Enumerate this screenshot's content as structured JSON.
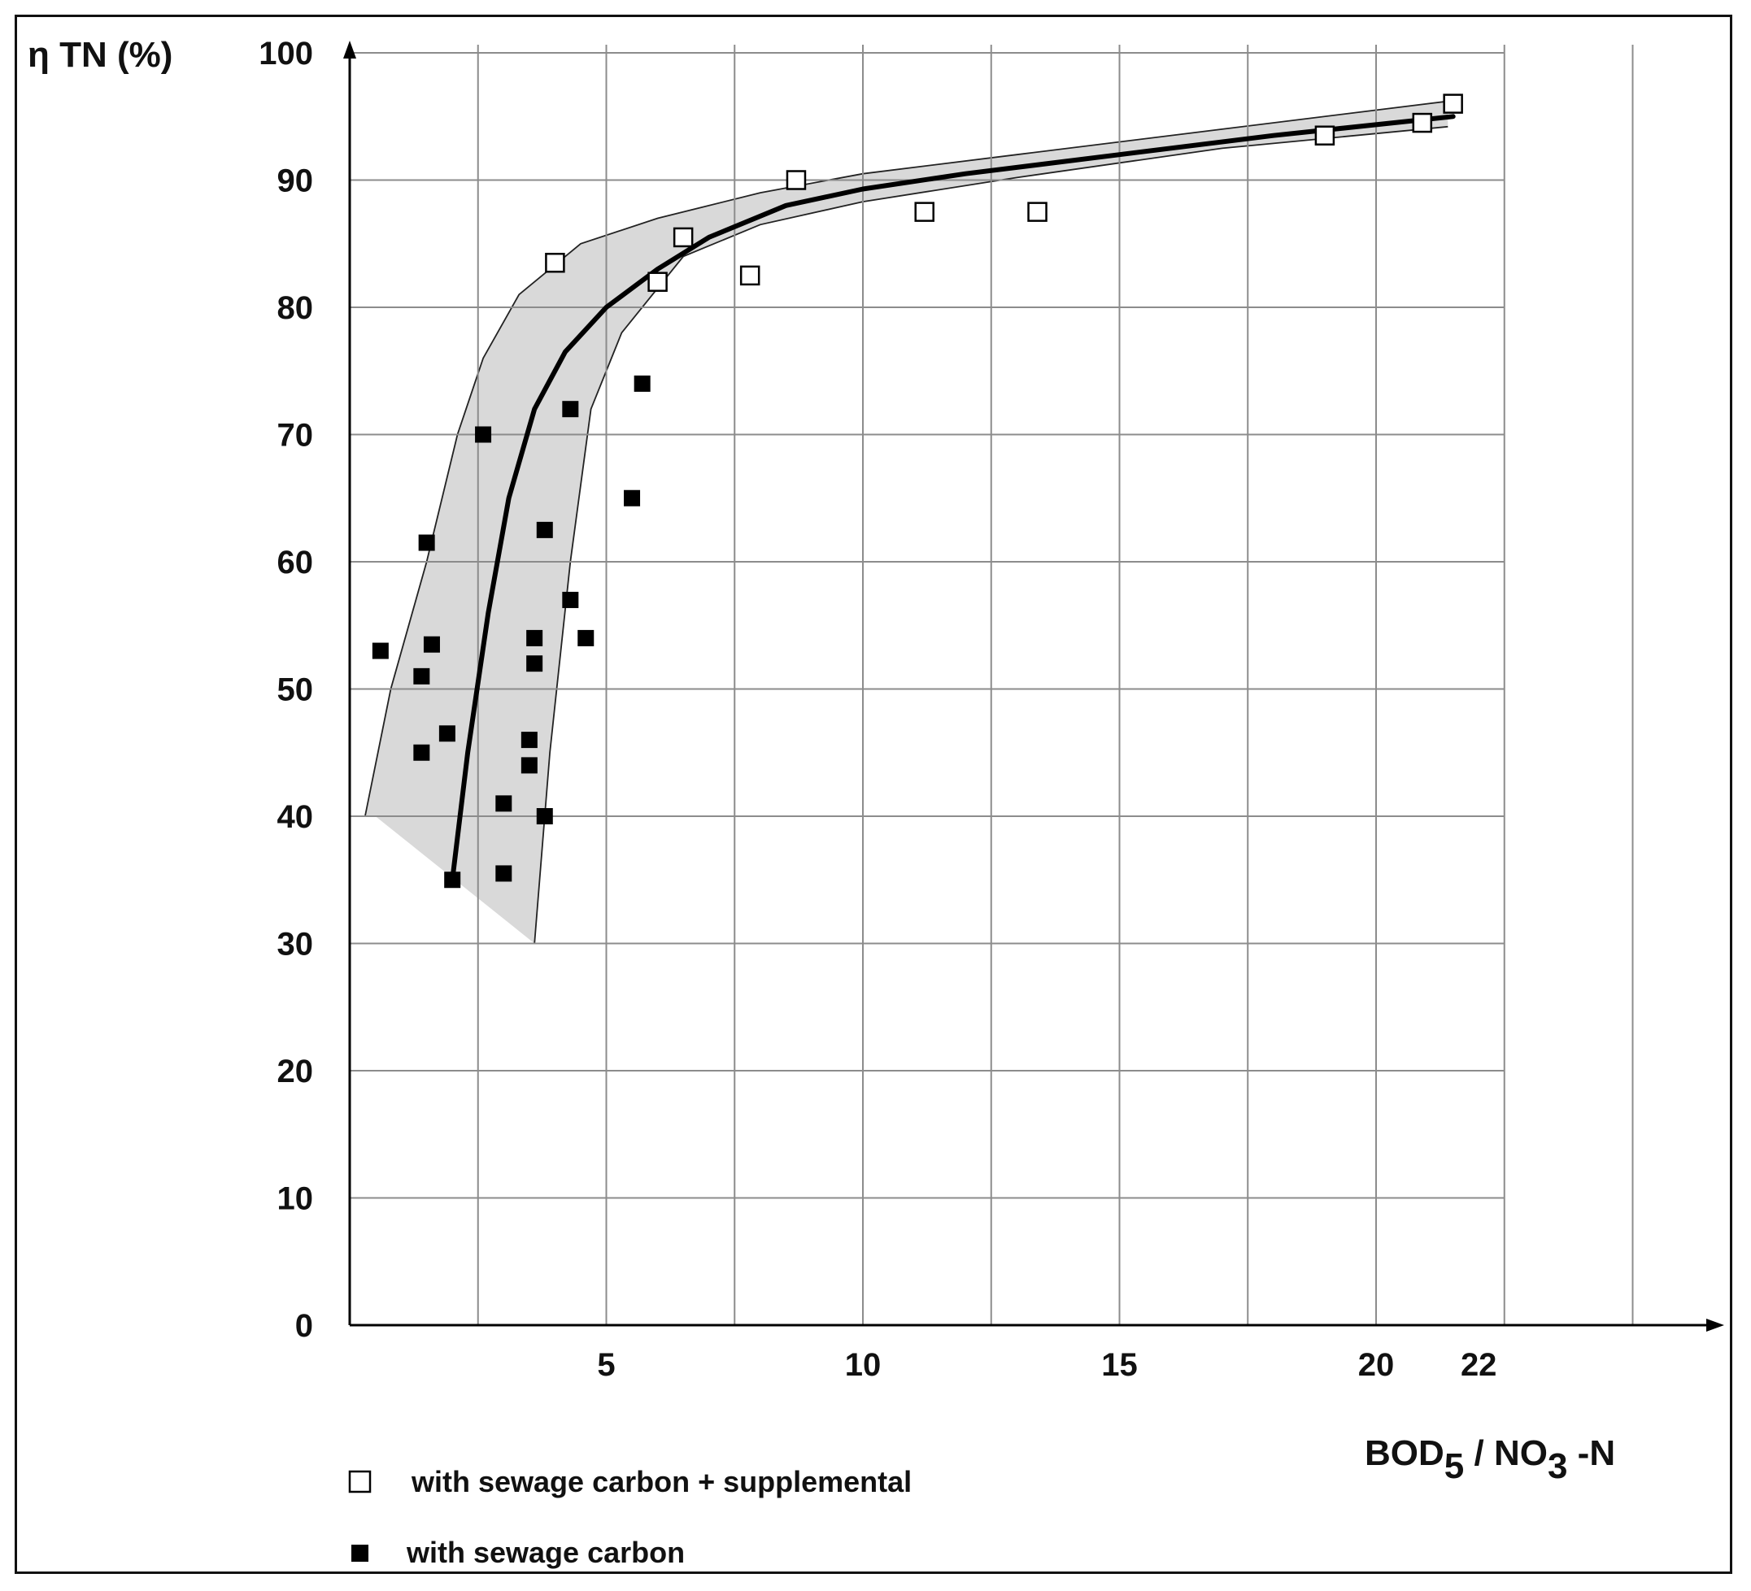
{
  "chart_data": {
    "type": "scatter",
    "ylabel": "η TN (%)",
    "xlabel": {
      "main": "BOD",
      "sub1": "5",
      "mid": " / NO",
      "sub2": "3",
      "end": " -N"
    },
    "xlim": [
      0,
      23.5
    ],
    "ylim": [
      0,
      100
    ],
    "x_ticks": [
      5,
      10,
      15,
      20,
      22
    ],
    "x_tick_labels": [
      "5",
      "10",
      "15",
      "20",
      "22"
    ],
    "y_ticks": [
      0,
      10,
      20,
      30,
      40,
      50,
      60,
      70,
      80,
      90,
      100
    ],
    "y_tick_labels": [
      "0",
      "10",
      "20",
      "30",
      "40",
      "50",
      "60",
      "70",
      "80",
      "90",
      "100"
    ],
    "grid": true,
    "grid_x": [
      2.5,
      5,
      7.5,
      10,
      12.5,
      15,
      17.5,
      20,
      22.5,
      25
    ],
    "legend_position": "bottom-left",
    "series": [
      {
        "name": "with sewage carbon + supplemental",
        "marker": "open-square",
        "points": [
          [
            4.0,
            83.5
          ],
          [
            6.0,
            82.0
          ],
          [
            6.5,
            85.5
          ],
          [
            7.8,
            82.5
          ],
          [
            8.7,
            90.0
          ],
          [
            11.2,
            87.5
          ],
          [
            13.4,
            87.5
          ],
          [
            19.0,
            93.5
          ],
          [
            20.9,
            94.5
          ],
          [
            21.5,
            96.0
          ]
        ]
      },
      {
        "name": "with sewage carbon",
        "marker": "filled-square",
        "points": [
          [
            0.6,
            53.0
          ],
          [
            1.4,
            51.0
          ],
          [
            1.4,
            45.0
          ],
          [
            1.5,
            61.5
          ],
          [
            1.6,
            53.5
          ],
          [
            1.9,
            46.5
          ],
          [
            2.0,
            35.0
          ],
          [
            2.6,
            70.0
          ],
          [
            3.0,
            41.0
          ],
          [
            3.0,
            35.5
          ],
          [
            3.5,
            46.0
          ],
          [
            3.5,
            44.0
          ],
          [
            3.6,
            54.0
          ],
          [
            3.6,
            52.0
          ],
          [
            3.8,
            62.5
          ],
          [
            3.8,
            40.0
          ],
          [
            4.3,
            72.0
          ],
          [
            4.3,
            57.0
          ],
          [
            4.6,
            54.0
          ],
          [
            5.5,
            65.0
          ],
          [
            5.7,
            74.0
          ]
        ]
      }
    ],
    "trend_line": [
      [
        2.0,
        35.0
      ],
      [
        2.3,
        45.0
      ],
      [
        2.7,
        56.0
      ],
      [
        3.1,
        65.0
      ],
      [
        3.6,
        72.0
      ],
      [
        4.2,
        76.5
      ],
      [
        5.0,
        80.0
      ],
      [
        6.0,
        83.0
      ],
      [
        7.0,
        85.5
      ],
      [
        8.5,
        88.0
      ],
      [
        10.0,
        89.3
      ],
      [
        12.0,
        90.5
      ],
      [
        15.0,
        92.0
      ],
      [
        18.0,
        93.5
      ],
      [
        21.5,
        95.0
      ]
    ],
    "band_upper": [
      [
        0.3,
        40.0
      ],
      [
        0.8,
        50.0
      ],
      [
        1.5,
        60.0
      ],
      [
        2.1,
        70.0
      ],
      [
        2.6,
        76.0
      ],
      [
        3.3,
        81.0
      ],
      [
        4.5,
        85.0
      ],
      [
        6.0,
        87.0
      ],
      [
        8.0,
        89.0
      ],
      [
        10.0,
        90.5
      ],
      [
        13.0,
        92.0
      ],
      [
        17.0,
        94.0
      ],
      [
        21.4,
        96.2
      ]
    ],
    "band_lower": [
      [
        21.4,
        94.2
      ],
      [
        17.0,
        92.5
      ],
      [
        13.0,
        90.2
      ],
      [
        10.0,
        88.3
      ],
      [
        8.0,
        86.5
      ],
      [
        6.5,
        84.0
      ],
      [
        5.3,
        78.0
      ],
      [
        4.7,
        72.0
      ],
      [
        4.3,
        60.0
      ],
      [
        3.9,
        45.0
      ],
      [
        3.6,
        30.0
      ],
      [
        0.5,
        40.0
      ]
    ],
    "colors": {
      "band": "#d9d9d9",
      "band_edge": "#222222",
      "grid": "#8c8c8c",
      "trend": "#000000",
      "marker": "#000000"
    }
  }
}
